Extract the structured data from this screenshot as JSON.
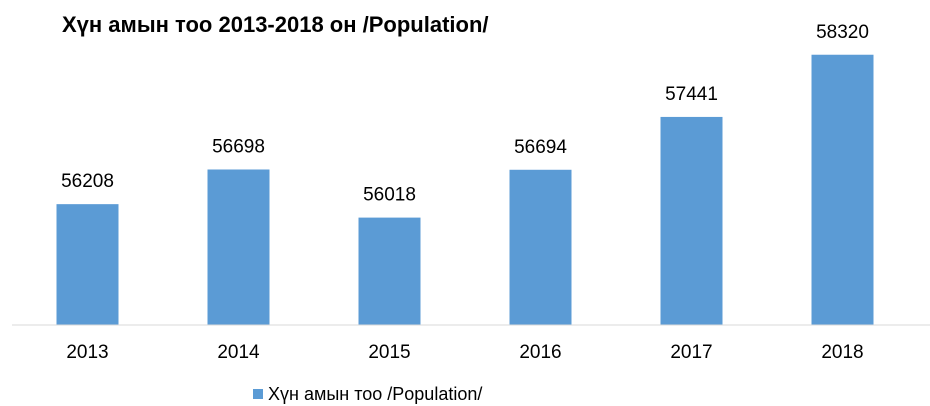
{
  "chart_data": {
    "type": "bar",
    "title": "Хүн амын тоо 2013-2018 он /Population/",
    "categories": [
      "2013",
      "2014",
      "2015",
      "2016",
      "2017",
      "2018"
    ],
    "series": [
      {
        "name": "Хүн амын тоо /Population/",
        "color": "#5b9bd5",
        "values": [
          56208,
          56698,
          56018,
          56694,
          57441,
          58320
        ]
      }
    ],
    "ylim": [
      54500,
      58500
    ],
    "legend": "bottom"
  }
}
